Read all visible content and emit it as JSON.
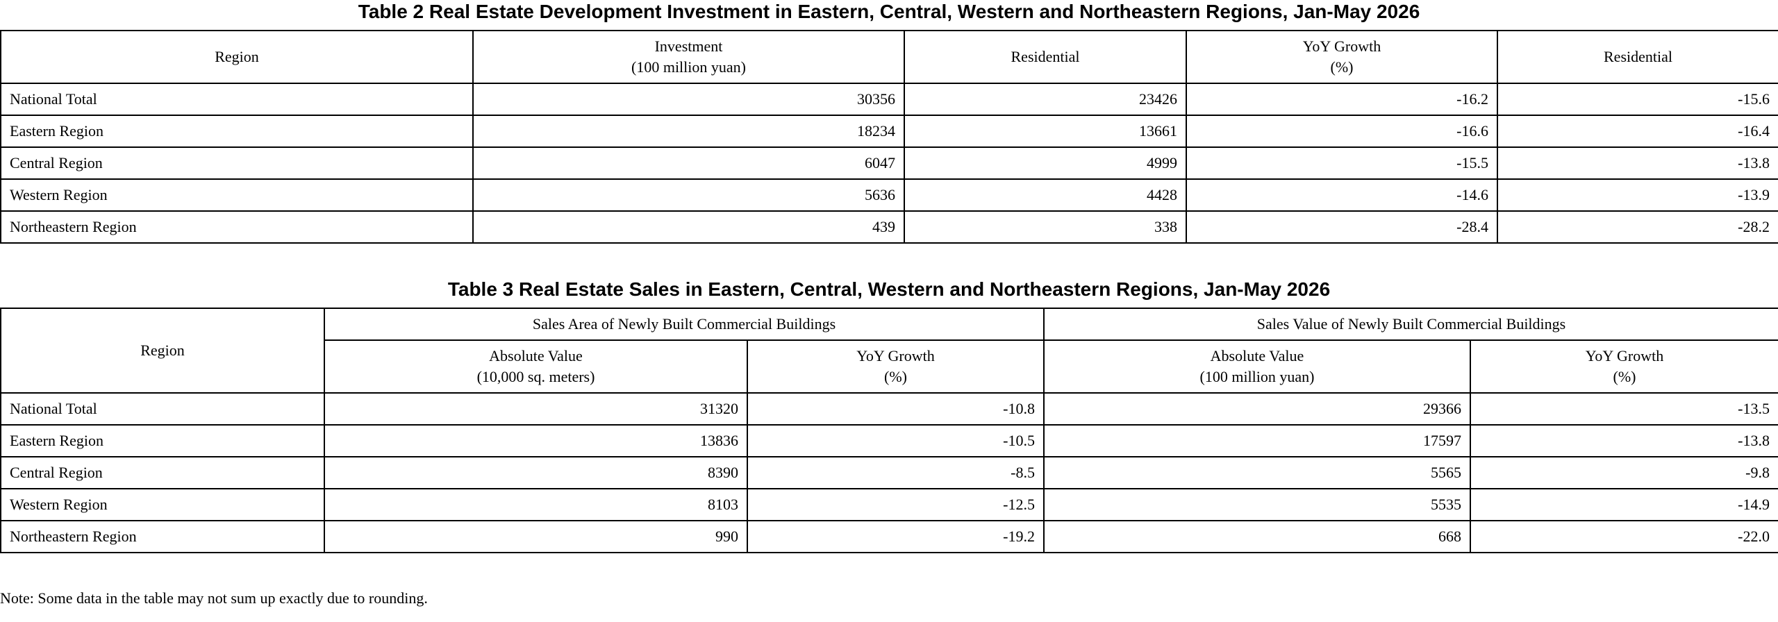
{
  "table2": {
    "title": "Table 2 Real Estate Development Investment in Eastern, Central, Western and Northeastern Regions, Jan-May 2026",
    "headers": {
      "region": "Region",
      "investment_line1": "Investment",
      "investment_line2": "(100 million yuan)",
      "residential": "Residential",
      "yoy_line1": "YoY Growth",
      "yoy_line2": "(%)",
      "yoy_residential": "Residential"
    },
    "rows": [
      {
        "region": "National Total",
        "investment": "30356",
        "residential": "23426",
        "yoy": "-16.2",
        "yoy_residential": "-15.6"
      },
      {
        "region": "Eastern Region",
        "investment": "18234",
        "residential": "13661",
        "yoy": "-16.6",
        "yoy_residential": "-16.4"
      },
      {
        "region": "Central Region",
        "investment": "6047",
        "residential": "4999",
        "yoy": "-15.5",
        "yoy_residential": "-13.8"
      },
      {
        "region": "Western Region",
        "investment": "5636",
        "residential": "4428",
        "yoy": "-14.6",
        "yoy_residential": "-13.9"
      },
      {
        "region": "Northeastern Region",
        "investment": "439",
        "residential": "338",
        "yoy": "-28.4",
        "yoy_residential": "-28.2"
      }
    ]
  },
  "table3": {
    "title": "Table 3 Real Estate Sales in Eastern, Central, Western and Northeastern Regions, Jan-May 2026",
    "headers": {
      "region": "Region",
      "sales_area_group": "Sales Area of Newly Built Commercial Buildings",
      "sales_value_group": "Sales Value of Newly Built Commercial Buildings",
      "area_abs_line1": "Absolute Value",
      "area_abs_line2": "(10,000 sq. meters)",
      "area_yoy_line1": "YoY Growth",
      "area_yoy_line2": "(%)",
      "value_abs_line1": "Absolute Value",
      "value_abs_line2": "(100 million yuan)",
      "value_yoy_line1": "YoY Growth",
      "value_yoy_line2": "(%)"
    },
    "rows": [
      {
        "region": "National Total",
        "area_abs": "31320",
        "area_yoy": "-10.8",
        "value_abs": "29366",
        "value_yoy": "-13.5"
      },
      {
        "region": "Eastern Region",
        "area_abs": "13836",
        "area_yoy": "-10.5",
        "value_abs": "17597",
        "value_yoy": "-13.8"
      },
      {
        "region": "Central Region",
        "area_abs": "8390",
        "area_yoy": "-8.5",
        "value_abs": "5565",
        "value_yoy": "-9.8"
      },
      {
        "region": "Western Region",
        "area_abs": "8103",
        "area_yoy": "-12.5",
        "value_abs": "5535",
        "value_yoy": "-14.9"
      },
      {
        "region": "Northeastern Region",
        "area_abs": "990",
        "area_yoy": "-19.2",
        "value_abs": "668",
        "value_yoy": "-22.0"
      }
    ]
  },
  "note": "Note: Some data in the table may not sum up exactly due to rounding."
}
